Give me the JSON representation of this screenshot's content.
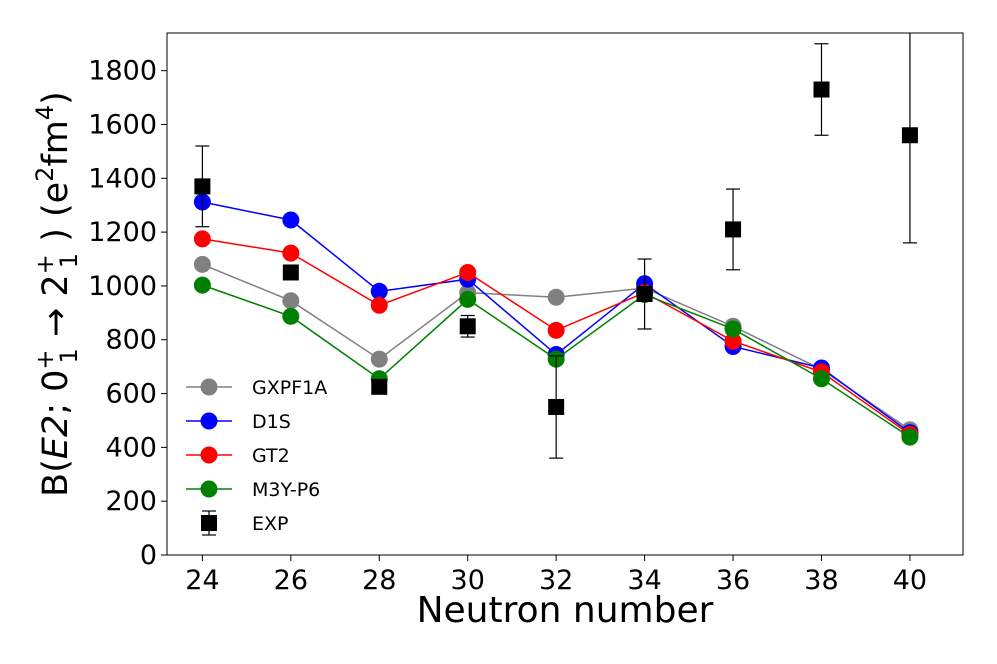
{
  "chart_data": {
    "type": "line",
    "title": "",
    "xlabel": "Neutron number",
    "ylabel": {
      "prefix": "B(",
      "italic": "E2",
      "middle": "; 0",
      "sup1": "+",
      "sub1": "1",
      "arrow": " → 2",
      "sup2": "+",
      "sub2": "1",
      "close": " ) (e",
      "sup3": "2",
      "fm": "fm",
      "sup4": "4",
      "end": ")"
    },
    "xlim": [
      23.2,
      41.2
    ],
    "ylim": [
      0,
      1940
    ],
    "x_ticks": [
      24,
      26,
      28,
      30,
      32,
      34,
      36,
      38,
      40
    ],
    "y_ticks": [
      0,
      200,
      400,
      600,
      800,
      1000,
      1200,
      1400,
      1600,
      1800
    ],
    "legend_position": "lower-left",
    "series": [
      {
        "name": "GXPF1A",
        "color": "#808080",
        "x": [
          24,
          26,
          28,
          30,
          32,
          34,
          36,
          38,
          40
        ],
        "values": [
          1080,
          945,
          728,
          975,
          958,
          992,
          850,
          690,
          465
        ]
      },
      {
        "name": "D1S",
        "color": "#0000ff",
        "x": [
          24,
          26,
          28,
          30,
          32,
          34,
          36,
          38,
          40
        ],
        "values": [
          1312,
          1245,
          980,
          1025,
          745,
          1008,
          775,
          695,
          455
        ]
      },
      {
        "name": "GT2",
        "color": "#ff0000",
        "x": [
          24,
          26,
          28,
          30,
          32,
          34,
          36,
          38,
          40
        ],
        "values": [
          1175,
          1122,
          928,
          1050,
          835,
          975,
          795,
          680,
          448
        ]
      },
      {
        "name": "M3Y-P6",
        "color": "#008000",
        "x": [
          24,
          26,
          28,
          30,
          32,
          34,
          36,
          38,
          40
        ],
        "values": [
          1003,
          887,
          655,
          950,
          728,
          968,
          840,
          655,
          438
        ]
      }
    ],
    "experiment": {
      "name": "EXP",
      "color": "#000000",
      "x": [
        24,
        26,
        28,
        30,
        32,
        34,
        36,
        38,
        40
      ],
      "values": [
        1370,
        1050,
        625,
        850,
        550,
        970,
        1210,
        1730,
        1560
      ],
      "errors": [
        150,
        0,
        0,
        40,
        190,
        130,
        150,
        170,
        400
      ]
    }
  }
}
